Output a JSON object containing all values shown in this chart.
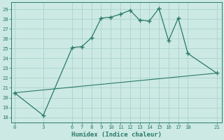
{
  "line1_x": [
    0,
    3,
    6,
    7,
    8,
    9,
    10,
    11,
    12,
    13,
    14,
    15,
    16,
    17,
    18,
    21
  ],
  "line1_y": [
    20.5,
    18.2,
    25.1,
    25.2,
    26.1,
    28.1,
    28.2,
    28.5,
    28.9,
    27.9,
    27.8,
    29.1,
    25.8,
    28.1,
    24.5,
    22.5
  ],
  "line2_x": [
    0,
    21
  ],
  "line2_y": [
    20.5,
    22.5
  ],
  "line_color": "#2a7a6a",
  "bg_color": "#cce9e3",
  "grid_color": "#aad4cc",
  "xlabel": "Humidex (Indice chaleur)",
  "xticks": [
    0,
    3,
    6,
    7,
    8,
    9,
    10,
    11,
    12,
    13,
    14,
    15,
    16,
    17,
    18,
    21
  ],
  "yticks": [
    18,
    19,
    20,
    21,
    22,
    23,
    24,
    25,
    26,
    27,
    28,
    29
  ],
  "ylim": [
    17.5,
    29.7
  ],
  "xlim": [
    -0.3,
    21.5
  ]
}
